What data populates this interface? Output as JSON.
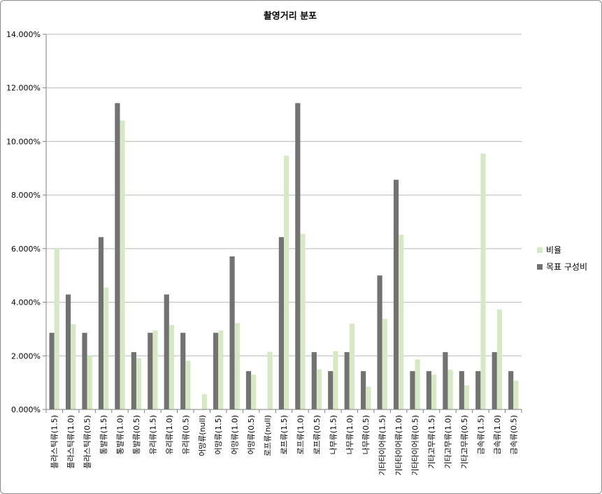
{
  "chart_data": {
    "type": "bar",
    "title": "촬영거리 분포",
    "xlabel": "",
    "ylabel": "",
    "ylim": [
      0,
      14
    ],
    "yticks": [
      "0.000%",
      "2.000%",
      "4.000%",
      "6.000%",
      "8.000%",
      "10.000%",
      "12.000%",
      "14.000%"
    ],
    "grid": true,
    "legend_position": "right",
    "categories": [
      "플라스틱류(1.5)",
      "플라스틱류(1.0)",
      "플라스틱류(0.5)",
      "통발류(1.5)",
      "통발류(1.0)",
      "통발류(0.5)",
      "유리류(1.5)",
      "유리류(1.0)",
      "유리류(0.5)",
      "어망류(null)",
      "어망류(1.5)",
      "어망류(1.0)",
      "어망류(0.5)",
      "로프류(null)",
      "로프류(1.5)",
      "로프류(1.0)",
      "로프류(0.5)",
      "나무류(1.5)",
      "나무류(1.0)",
      "나무류(0.5)",
      "기타타이어류(1.5)",
      "기타타이어류(1.0)",
      "기타타이어류(0.5)",
      "기타고무류(1.5)",
      "기타고무류(1.0)",
      "기타고무류(0.5)",
      "금속류(1.5)",
      "금속류(1.0)",
      "금속류(0.5)"
    ],
    "series": [
      {
        "name": "목표 구성비",
        "color": "#727272",
        "values": [
          2.86,
          4.29,
          2.86,
          6.43,
          11.43,
          2.14,
          2.86,
          4.29,
          2.86,
          0,
          2.86,
          5.71,
          1.43,
          0,
          6.43,
          11.43,
          2.14,
          1.43,
          2.14,
          1.43,
          5.0,
          8.57,
          1.43,
          1.43,
          2.14,
          1.43,
          1.43,
          2.14,
          1.43
        ]
      },
      {
        "name": "비율",
        "color": "#d6e9c4",
        "values": [
          6.02,
          3.18,
          2.0,
          4.55,
          10.78,
          1.92,
          2.95,
          3.15,
          1.82,
          0.57,
          2.95,
          3.22,
          1.3,
          2.15,
          9.47,
          6.55,
          1.5,
          2.18,
          3.2,
          0.85,
          3.38,
          6.52,
          1.87,
          1.3,
          1.48,
          0.9,
          9.55,
          3.73,
          1.08
        ]
      }
    ],
    "legend": [
      {
        "name": "비율",
        "color": "#d6e9c4"
      },
      {
        "name": "목표 구성비",
        "color": "#727272"
      }
    ]
  }
}
